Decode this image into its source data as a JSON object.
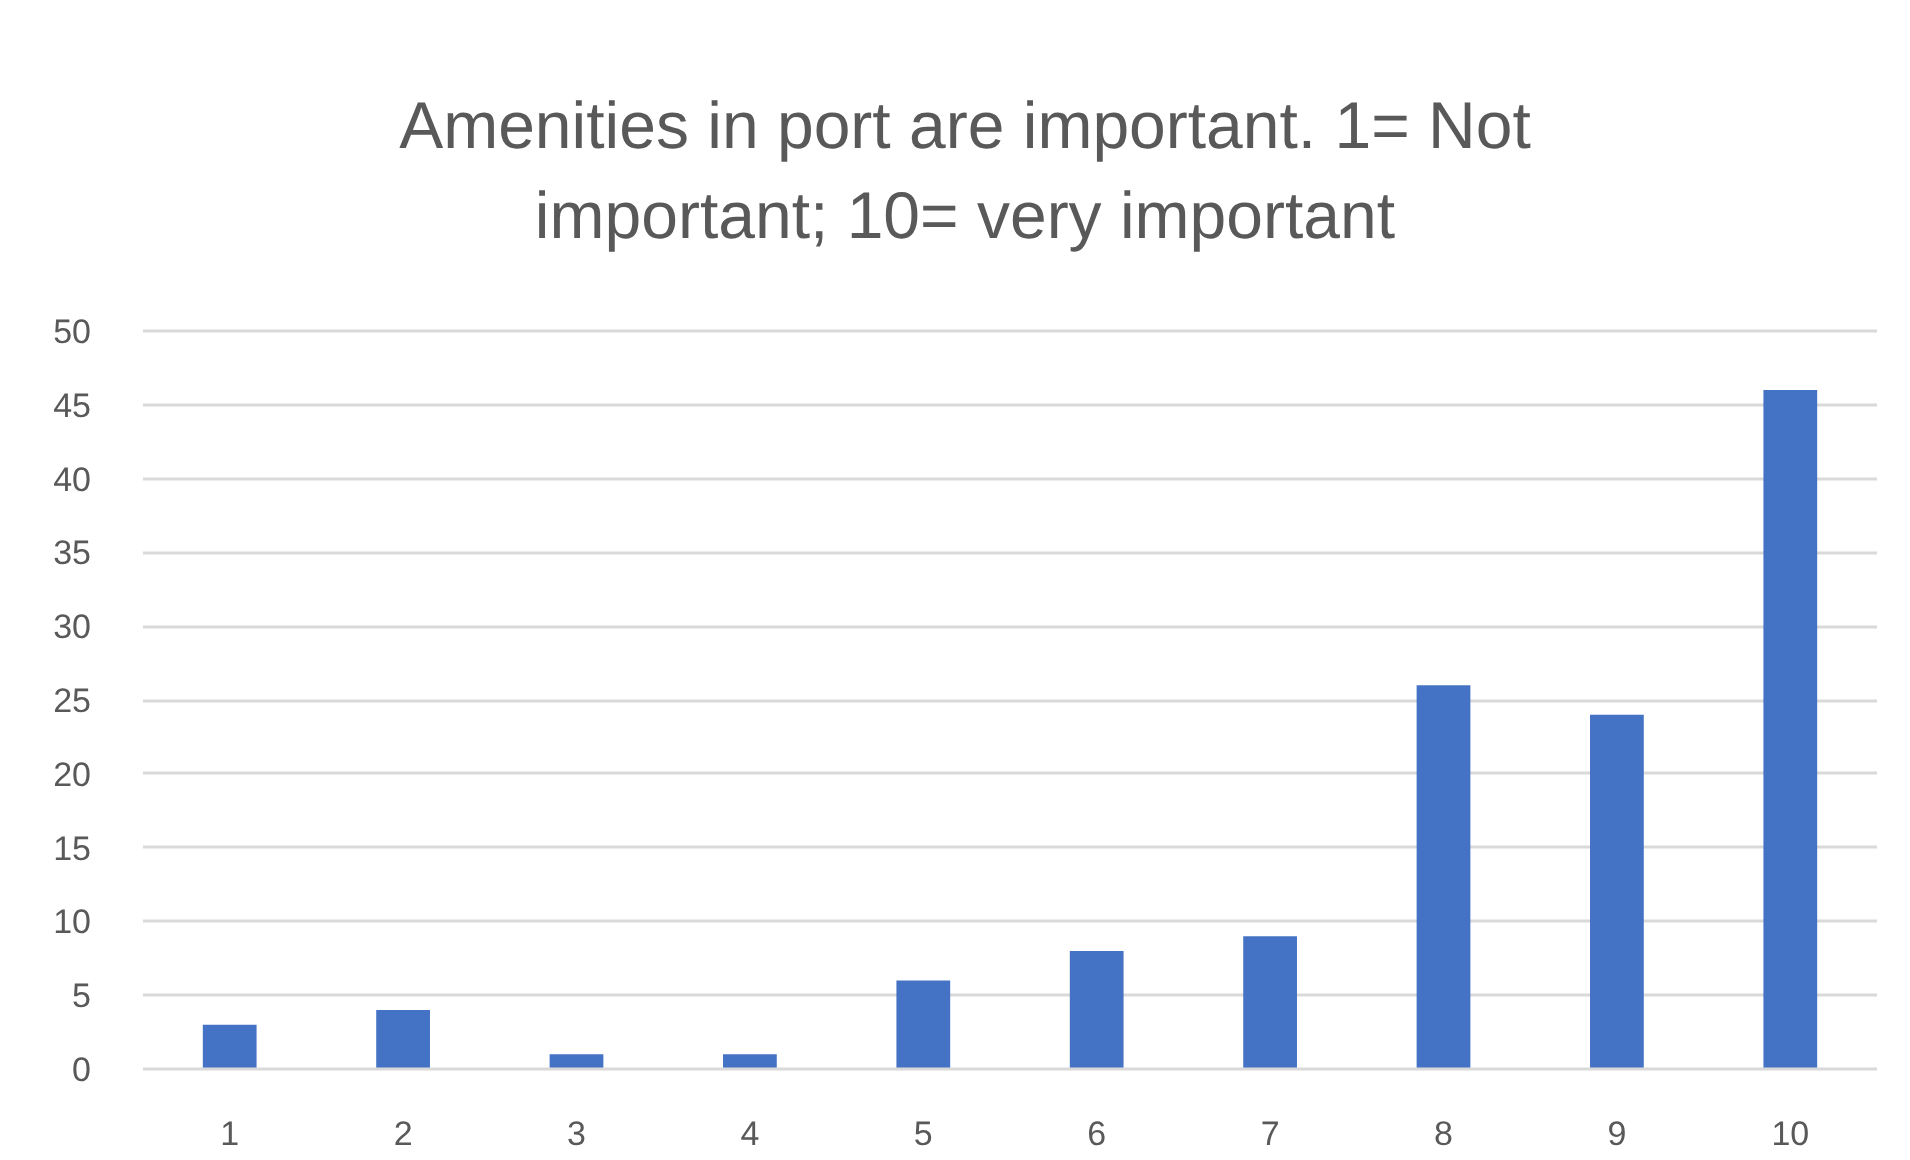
{
  "chart_data": {
    "type": "bar",
    "title": "Amenities in port are important. 1= Not important; 10= very important",
    "categories": [
      "1",
      "2",
      "3",
      "4",
      "5",
      "6",
      "7",
      "8",
      "9",
      "10"
    ],
    "values": [
      3,
      4,
      1,
      1,
      6,
      8,
      9,
      26,
      24,
      46
    ],
    "color": "#4472c4",
    "ylim": [
      0,
      50
    ],
    "yticks": [
      0,
      5,
      10,
      15,
      20,
      25,
      30,
      35,
      40,
      45,
      50
    ],
    "grid": "y"
  }
}
